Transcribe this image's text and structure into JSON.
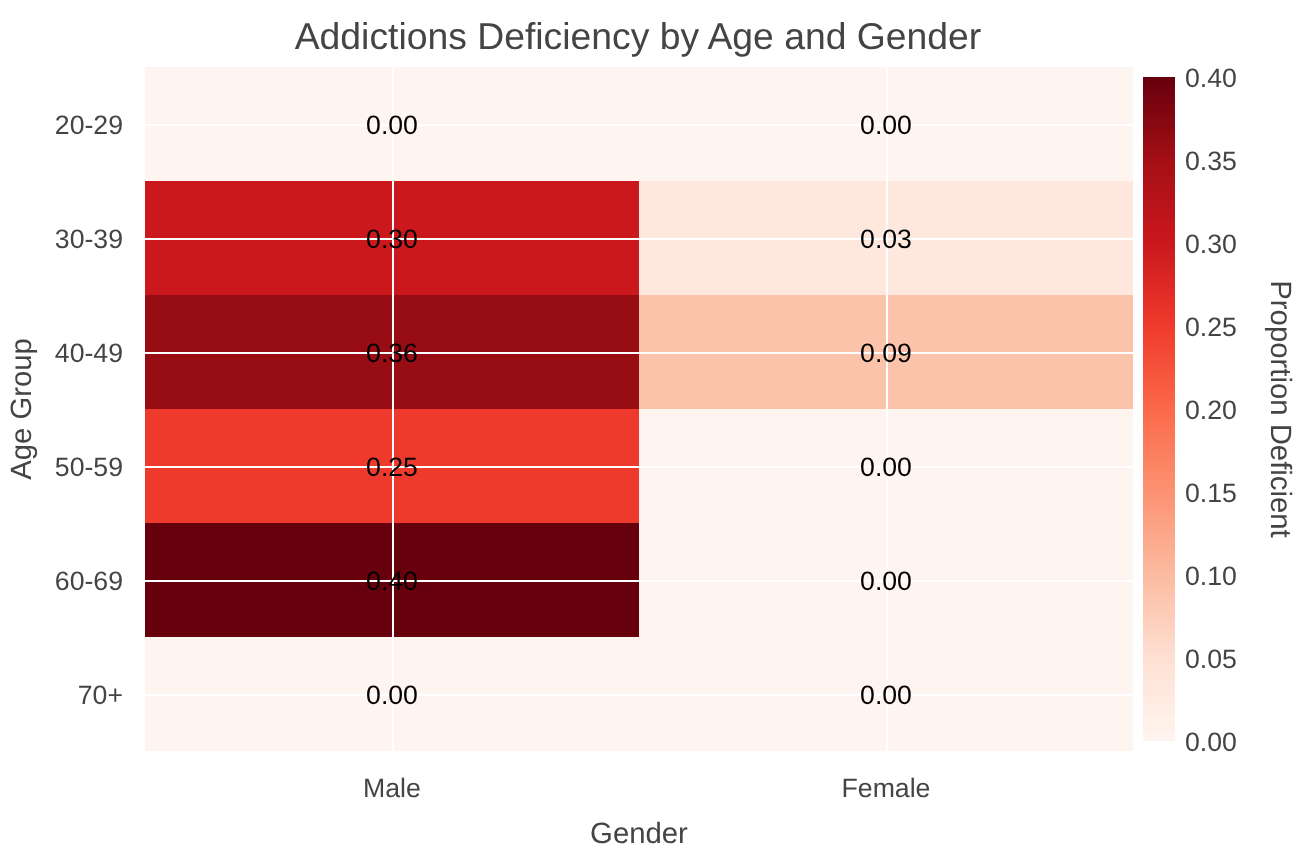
{
  "chart_data": {
    "type": "heatmap",
    "title": "Addictions Deficiency by Age and Gender",
    "xlabel": "Gender",
    "ylabel": "Age Group",
    "clabel": "Proportion Deficient",
    "categories": [
      "Male",
      "Female"
    ],
    "y_categories": [
      "20-29",
      "30-39",
      "40-49",
      "50-59",
      "60-69",
      "70+"
    ],
    "cells": [
      [
        0.0,
        0.0
      ],
      [
        0.3,
        0.03
      ],
      [
        0.36,
        0.09
      ],
      [
        0.25,
        0.0
      ],
      [
        0.4,
        0.0
      ],
      [
        0.0,
        0.0
      ]
    ],
    "cell_labels": [
      [
        "0.00",
        "0.00"
      ],
      [
        "0.30",
        "0.03"
      ],
      [
        "0.36",
        "0.09"
      ],
      [
        "0.25",
        "0.00"
      ],
      [
        "0.40",
        "0.00"
      ],
      [
        "0.00",
        "0.00"
      ]
    ],
    "clim": [
      0,
      0.4
    ],
    "cticks": [
      {
        "value": 0,
        "label": "0.00"
      },
      0.05,
      {
        "value": 0.1,
        "label": "0.10"
      },
      0.15,
      {
        "value": 0.2,
        "label": "0.20"
      },
      0.25,
      {
        "value": 0.3,
        "label": "0.30"
      },
      0.35,
      {
        "value": 0.4,
        "label": "0.40"
      }
    ],
    "grid": true
  }
}
